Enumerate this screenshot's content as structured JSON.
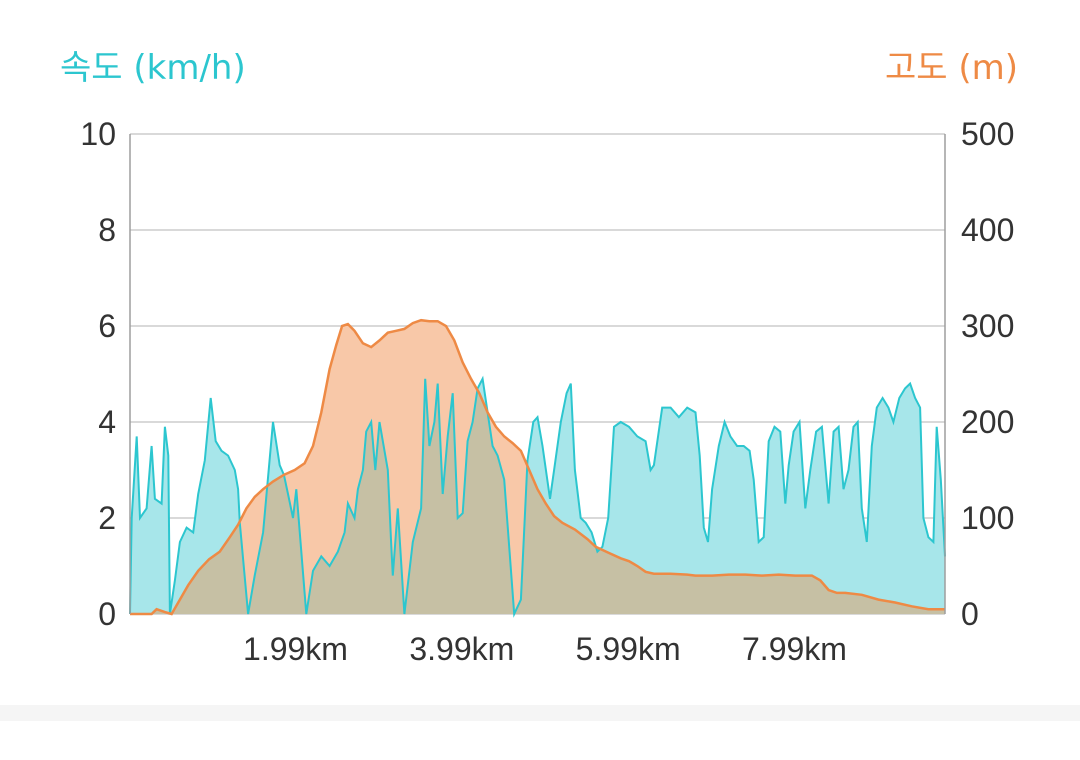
{
  "colors": {
    "speed_line": "#2cc6cf",
    "speed_fill": "#a7e6ea",
    "elevation_line": "#ee8a45",
    "elevation_fill": "#f8c8a8",
    "overlap_fill": "#c6c0a4",
    "grid": "#d9d9d9",
    "tick_text": "#333333"
  },
  "chart_data": {
    "type": "area",
    "left_axis_title": "속도 (km/h)",
    "right_axis_title": "고도 (m)",
    "grid": true,
    "x_unit": "km",
    "x_range": [
      0,
      9.8
    ],
    "x_ticks": [
      {
        "value": 1.99,
        "label": "1.99km"
      },
      {
        "value": 3.99,
        "label": "3.99km"
      },
      {
        "value": 5.99,
        "label": "5.99km"
      },
      {
        "value": 7.99,
        "label": "7.99km"
      }
    ],
    "y_left": {
      "range": [
        0,
        10
      ],
      "ticks": [
        0,
        2,
        4,
        6,
        8,
        10
      ]
    },
    "y_right": {
      "range": [
        0,
        500
      ],
      "ticks": [
        0,
        100,
        200,
        300,
        400,
        500
      ]
    },
    "series": [
      {
        "axis": "left",
        "points": [
          [
            0.0,
            0.0
          ],
          [
            0.02,
            2.0
          ],
          [
            0.08,
            3.7
          ],
          [
            0.12,
            2.0
          ],
          [
            0.2,
            2.2
          ],
          [
            0.26,
            3.5
          ],
          [
            0.3,
            2.4
          ],
          [
            0.38,
            2.3
          ],
          [
            0.42,
            3.9
          ],
          [
            0.46,
            3.3
          ],
          [
            0.48,
            0.0
          ],
          [
            0.54,
            0.7
          ],
          [
            0.6,
            1.5
          ],
          [
            0.68,
            1.8
          ],
          [
            0.76,
            1.7
          ],
          [
            0.82,
            2.5
          ],
          [
            0.9,
            3.2
          ],
          [
            0.97,
            4.5
          ],
          [
            1.03,
            3.6
          ],
          [
            1.1,
            3.4
          ],
          [
            1.18,
            3.3
          ],
          [
            1.26,
            3.0
          ],
          [
            1.3,
            2.6
          ],
          [
            1.32,
            1.9
          ],
          [
            1.42,
            0.0
          ],
          [
            1.5,
            0.8
          ],
          [
            1.6,
            1.7
          ],
          [
            1.72,
            4.0
          ],
          [
            1.8,
            3.1
          ],
          [
            1.85,
            2.9
          ],
          [
            1.9,
            2.5
          ],
          [
            1.96,
            2.0
          ],
          [
            2.0,
            2.6
          ],
          [
            2.12,
            0.0
          ],
          [
            2.2,
            0.9
          ],
          [
            2.3,
            1.2
          ],
          [
            2.4,
            1.0
          ],
          [
            2.5,
            1.3
          ],
          [
            2.58,
            1.7
          ],
          [
            2.62,
            2.3
          ],
          [
            2.7,
            2.0
          ],
          [
            2.74,
            2.6
          ],
          [
            2.8,
            3.0
          ],
          [
            2.84,
            3.8
          ],
          [
            2.9,
            4.0
          ],
          [
            2.95,
            3.0
          ],
          [
            3.0,
            4.0
          ],
          [
            3.1,
            3.0
          ],
          [
            3.14,
            1.5
          ],
          [
            3.16,
            0.8
          ],
          [
            3.22,
            2.2
          ],
          [
            3.3,
            0.0
          ],
          [
            3.4,
            1.5
          ],
          [
            3.5,
            2.2
          ],
          [
            3.55,
            4.9
          ],
          [
            3.6,
            3.5
          ],
          [
            3.66,
            4.0
          ],
          [
            3.7,
            4.8
          ],
          [
            3.76,
            2.5
          ],
          [
            3.82,
            3.7
          ],
          [
            3.88,
            4.6
          ],
          [
            3.94,
            2.0
          ],
          [
            4.0,
            2.1
          ],
          [
            4.06,
            3.6
          ],
          [
            4.12,
            4.0
          ],
          [
            4.18,
            4.7
          ],
          [
            4.24,
            4.9
          ],
          [
            4.3,
            4.2
          ],
          [
            4.36,
            3.5
          ],
          [
            4.42,
            3.3
          ],
          [
            4.5,
            2.8
          ],
          [
            4.62,
            0.0
          ],
          [
            4.7,
            0.3
          ],
          [
            4.78,
            3.2
          ],
          [
            4.85,
            4.0
          ],
          [
            4.9,
            4.1
          ],
          [
            4.96,
            3.5
          ],
          [
            5.05,
            2.4
          ],
          [
            5.1,
            3.0
          ],
          [
            5.18,
            4.0
          ],
          [
            5.25,
            4.6
          ],
          [
            5.3,
            4.8
          ],
          [
            5.35,
            3.0
          ],
          [
            5.42,
            2.0
          ],
          [
            5.48,
            1.9
          ],
          [
            5.55,
            1.7
          ],
          [
            5.62,
            1.3
          ],
          [
            5.68,
            1.4
          ],
          [
            5.75,
            2.0
          ],
          [
            5.82,
            3.9
          ],
          [
            5.9,
            4.0
          ],
          [
            6.0,
            3.9
          ],
          [
            6.1,
            3.7
          ],
          [
            6.2,
            3.6
          ],
          [
            6.26,
            3.0
          ],
          [
            6.3,
            3.1
          ],
          [
            6.4,
            4.3
          ],
          [
            6.5,
            4.3
          ],
          [
            6.6,
            4.1
          ],
          [
            6.7,
            4.3
          ],
          [
            6.8,
            4.2
          ],
          [
            6.85,
            3.3
          ],
          [
            6.9,
            1.8
          ],
          [
            6.95,
            1.5
          ],
          [
            7.0,
            2.6
          ],
          [
            7.08,
            3.5
          ],
          [
            7.15,
            4.0
          ],
          [
            7.22,
            3.7
          ],
          [
            7.3,
            3.5
          ],
          [
            7.38,
            3.5
          ],
          [
            7.45,
            3.4
          ],
          [
            7.5,
            2.8
          ],
          [
            7.56,
            1.5
          ],
          [
            7.62,
            1.6
          ],
          [
            7.68,
            3.6
          ],
          [
            7.75,
            3.9
          ],
          [
            7.82,
            3.8
          ],
          [
            7.88,
            2.3
          ],
          [
            7.92,
            3.1
          ],
          [
            7.98,
            3.8
          ],
          [
            8.05,
            4.0
          ],
          [
            8.12,
            2.2
          ],
          [
            8.18,
            3.0
          ],
          [
            8.25,
            3.8
          ],
          [
            8.32,
            3.9
          ],
          [
            8.4,
            2.3
          ],
          [
            8.46,
            3.8
          ],
          [
            8.52,
            3.9
          ],
          [
            8.58,
            2.6
          ],
          [
            8.64,
            3.0
          ],
          [
            8.7,
            3.9
          ],
          [
            8.75,
            4.0
          ],
          [
            8.8,
            2.2
          ],
          [
            8.86,
            1.5
          ],
          [
            8.92,
            3.5
          ],
          [
            8.98,
            4.3
          ],
          [
            9.05,
            4.5
          ],
          [
            9.12,
            4.3
          ],
          [
            9.18,
            4.0
          ],
          [
            9.25,
            4.5
          ],
          [
            9.32,
            4.7
          ],
          [
            9.38,
            4.8
          ],
          [
            9.44,
            4.5
          ],
          [
            9.5,
            4.3
          ],
          [
            9.54,
            2.0
          ],
          [
            9.6,
            1.6
          ],
          [
            9.66,
            1.5
          ],
          [
            9.7,
            3.9
          ],
          [
            9.75,
            2.8
          ],
          [
            9.8,
            1.2
          ]
        ]
      },
      {
        "axis": "right",
        "points": [
          [
            0.0,
            0
          ],
          [
            0.26,
            0
          ],
          [
            0.32,
            5
          ],
          [
            0.42,
            2
          ],
          [
            0.5,
            0
          ],
          [
            0.6,
            15
          ],
          [
            0.7,
            30
          ],
          [
            0.82,
            45
          ],
          [
            0.95,
            57
          ],
          [
            1.08,
            65
          ],
          [
            1.2,
            80
          ],
          [
            1.3,
            93
          ],
          [
            1.4,
            110
          ],
          [
            1.5,
            122
          ],
          [
            1.6,
            130
          ],
          [
            1.72,
            138
          ],
          [
            1.85,
            145
          ],
          [
            1.98,
            150
          ],
          [
            2.1,
            157
          ],
          [
            2.2,
            175
          ],
          [
            2.3,
            210
          ],
          [
            2.4,
            255
          ],
          [
            2.48,
            280
          ],
          [
            2.55,
            300
          ],
          [
            2.62,
            302
          ],
          [
            2.7,
            295
          ],
          [
            2.8,
            282
          ],
          [
            2.9,
            278
          ],
          [
            3.0,
            285
          ],
          [
            3.1,
            293
          ],
          [
            3.2,
            295
          ],
          [
            3.3,
            297
          ],
          [
            3.4,
            303
          ],
          [
            3.5,
            306
          ],
          [
            3.6,
            305
          ],
          [
            3.7,
            305
          ],
          [
            3.8,
            300
          ],
          [
            3.9,
            285
          ],
          [
            4.0,
            262
          ],
          [
            4.1,
            245
          ],
          [
            4.2,
            230
          ],
          [
            4.3,
            210
          ],
          [
            4.4,
            195
          ],
          [
            4.5,
            185
          ],
          [
            4.6,
            178
          ],
          [
            4.7,
            170
          ],
          [
            4.8,
            150
          ],
          [
            4.9,
            130
          ],
          [
            5.0,
            115
          ],
          [
            5.1,
            102
          ],
          [
            5.2,
            95
          ],
          [
            5.35,
            88
          ],
          [
            5.5,
            78
          ],
          [
            5.6,
            70
          ],
          [
            5.75,
            64
          ],
          [
            5.9,
            58
          ],
          [
            6.0,
            55
          ],
          [
            6.1,
            50
          ],
          [
            6.2,
            44
          ],
          [
            6.3,
            42
          ],
          [
            6.5,
            42
          ],
          [
            6.7,
            41
          ],
          [
            6.8,
            40
          ],
          [
            7.0,
            40
          ],
          [
            7.2,
            41
          ],
          [
            7.4,
            41
          ],
          [
            7.6,
            40
          ],
          [
            7.8,
            41
          ],
          [
            8.0,
            40
          ],
          [
            8.2,
            40
          ],
          [
            8.3,
            35
          ],
          [
            8.4,
            25
          ],
          [
            8.5,
            22
          ],
          [
            8.6,
            22
          ],
          [
            8.8,
            20
          ],
          [
            9.0,
            15
          ],
          [
            9.2,
            12
          ],
          [
            9.4,
            8
          ],
          [
            9.6,
            5
          ],
          [
            9.7,
            5
          ],
          [
            9.8,
            5
          ]
        ]
      }
    ]
  }
}
